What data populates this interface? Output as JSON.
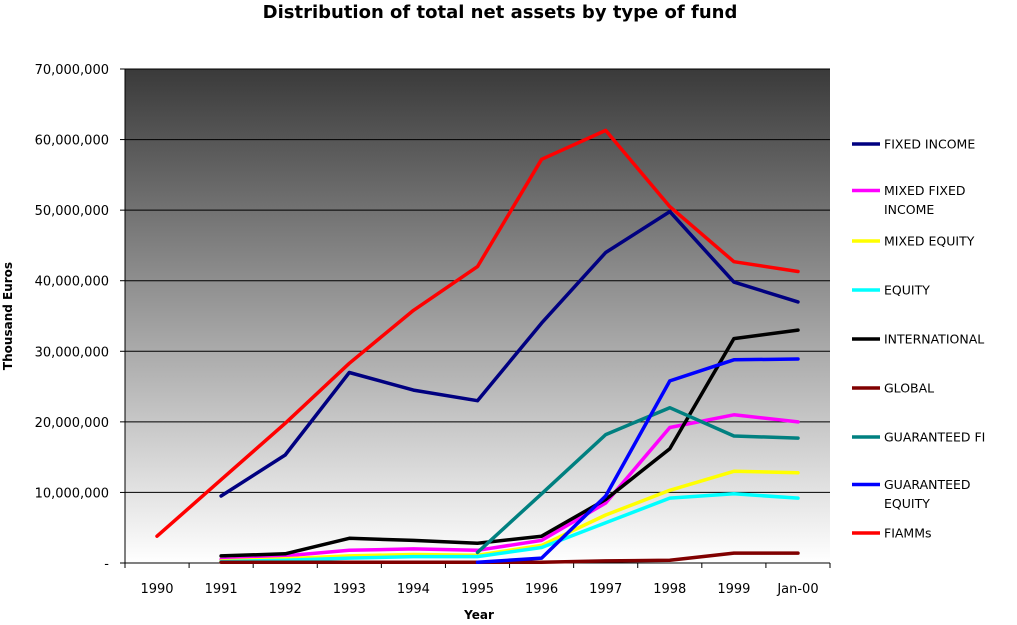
{
  "chart_data": {
    "type": "line",
    "title": "Distribution of total net assets by type of fund",
    "xlabel": "Year",
    "ylabel": "Thousand Euros",
    "categories": [
      "1990",
      "1991",
      "1992",
      "1993",
      "1994",
      "1995",
      "1996",
      "1997",
      "1998",
      "1999",
      "Jan-00"
    ],
    "y_tick_labels": [
      "-",
      "10,000,000",
      "20,000,000",
      "30,000,000",
      "40,000,000",
      "50,000,000",
      "60,000,000",
      "70,000,000"
    ],
    "ylim": [
      0,
      70000000
    ],
    "grid": true,
    "legend_position": "right",
    "series": [
      {
        "name": "FIXED INCOME",
        "color": "#000080",
        "values": [
          null,
          9500000,
          15300000,
          27000000,
          24500000,
          23000000,
          34000000,
          44000000,
          49800000,
          39800000,
          37000000
        ]
      },
      {
        "name": "MIXED FIXED INCOME",
        "color": "#ff00ff",
        "values": [
          null,
          500000,
          1000000,
          1800000,
          2000000,
          1800000,
          3200000,
          8500000,
          19200000,
          21000000,
          20000000
        ]
      },
      {
        "name": "MIXED EQUITY",
        "color": "#ffff00",
        "values": [
          null,
          300000,
          600000,
          1000000,
          1200000,
          1100000,
          2500000,
          6800000,
          10300000,
          13000000,
          12800000
        ]
      },
      {
        "name": "EQUITY",
        "color": "#00ffff",
        "values": [
          null,
          200000,
          400000,
          700000,
          900000,
          900000,
          2200000,
          5700000,
          9200000,
          9800000,
          9200000
        ]
      },
      {
        "name": "INTERNATIONAL",
        "color": "#000000",
        "values": [
          null,
          1000000,
          1300000,
          3500000,
          3200000,
          2800000,
          3800000,
          9000000,
          16200000,
          31800000,
          33000000
        ]
      },
      {
        "name": "GLOBAL",
        "color": "#800000",
        "values": [
          null,
          100000,
          100000,
          100000,
          100000,
          100000,
          100000,
          300000,
          400000,
          1400000,
          1400000
        ]
      },
      {
        "name": "GUARANTEED FI",
        "color": "#008080",
        "values": [
          null,
          null,
          null,
          null,
          null,
          1500000,
          9800000,
          18200000,
          22000000,
          18000000,
          17700000
        ]
      },
      {
        "name": "GUARANTEED EQUITY",
        "color": "#0000ff",
        "values": [
          null,
          null,
          null,
          null,
          null,
          100000,
          700000,
          9500000,
          25800000,
          28800000,
          28900000
        ]
      },
      {
        "name": "FIAMMs",
        "color": "#ff0000",
        "values": [
          3800000,
          11800000,
          19800000,
          28300000,
          35800000,
          42000000,
          57200000,
          61300000,
          50500000,
          42700000,
          41300000
        ]
      }
    ]
  }
}
